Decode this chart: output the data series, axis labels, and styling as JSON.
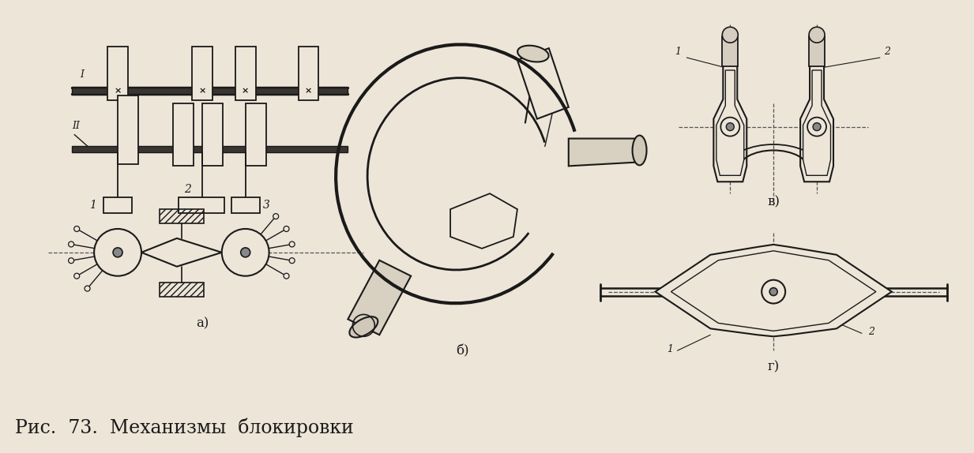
{
  "background_color": "#ede5d8",
  "caption": "Рис.  73.  Механизмы  блокировки",
  "caption_fontsize": 17,
  "line_color": "#1a1a1a",
  "label_a": "а)",
  "label_b": "б)",
  "label_v": "в)",
  "label_g": "г)"
}
